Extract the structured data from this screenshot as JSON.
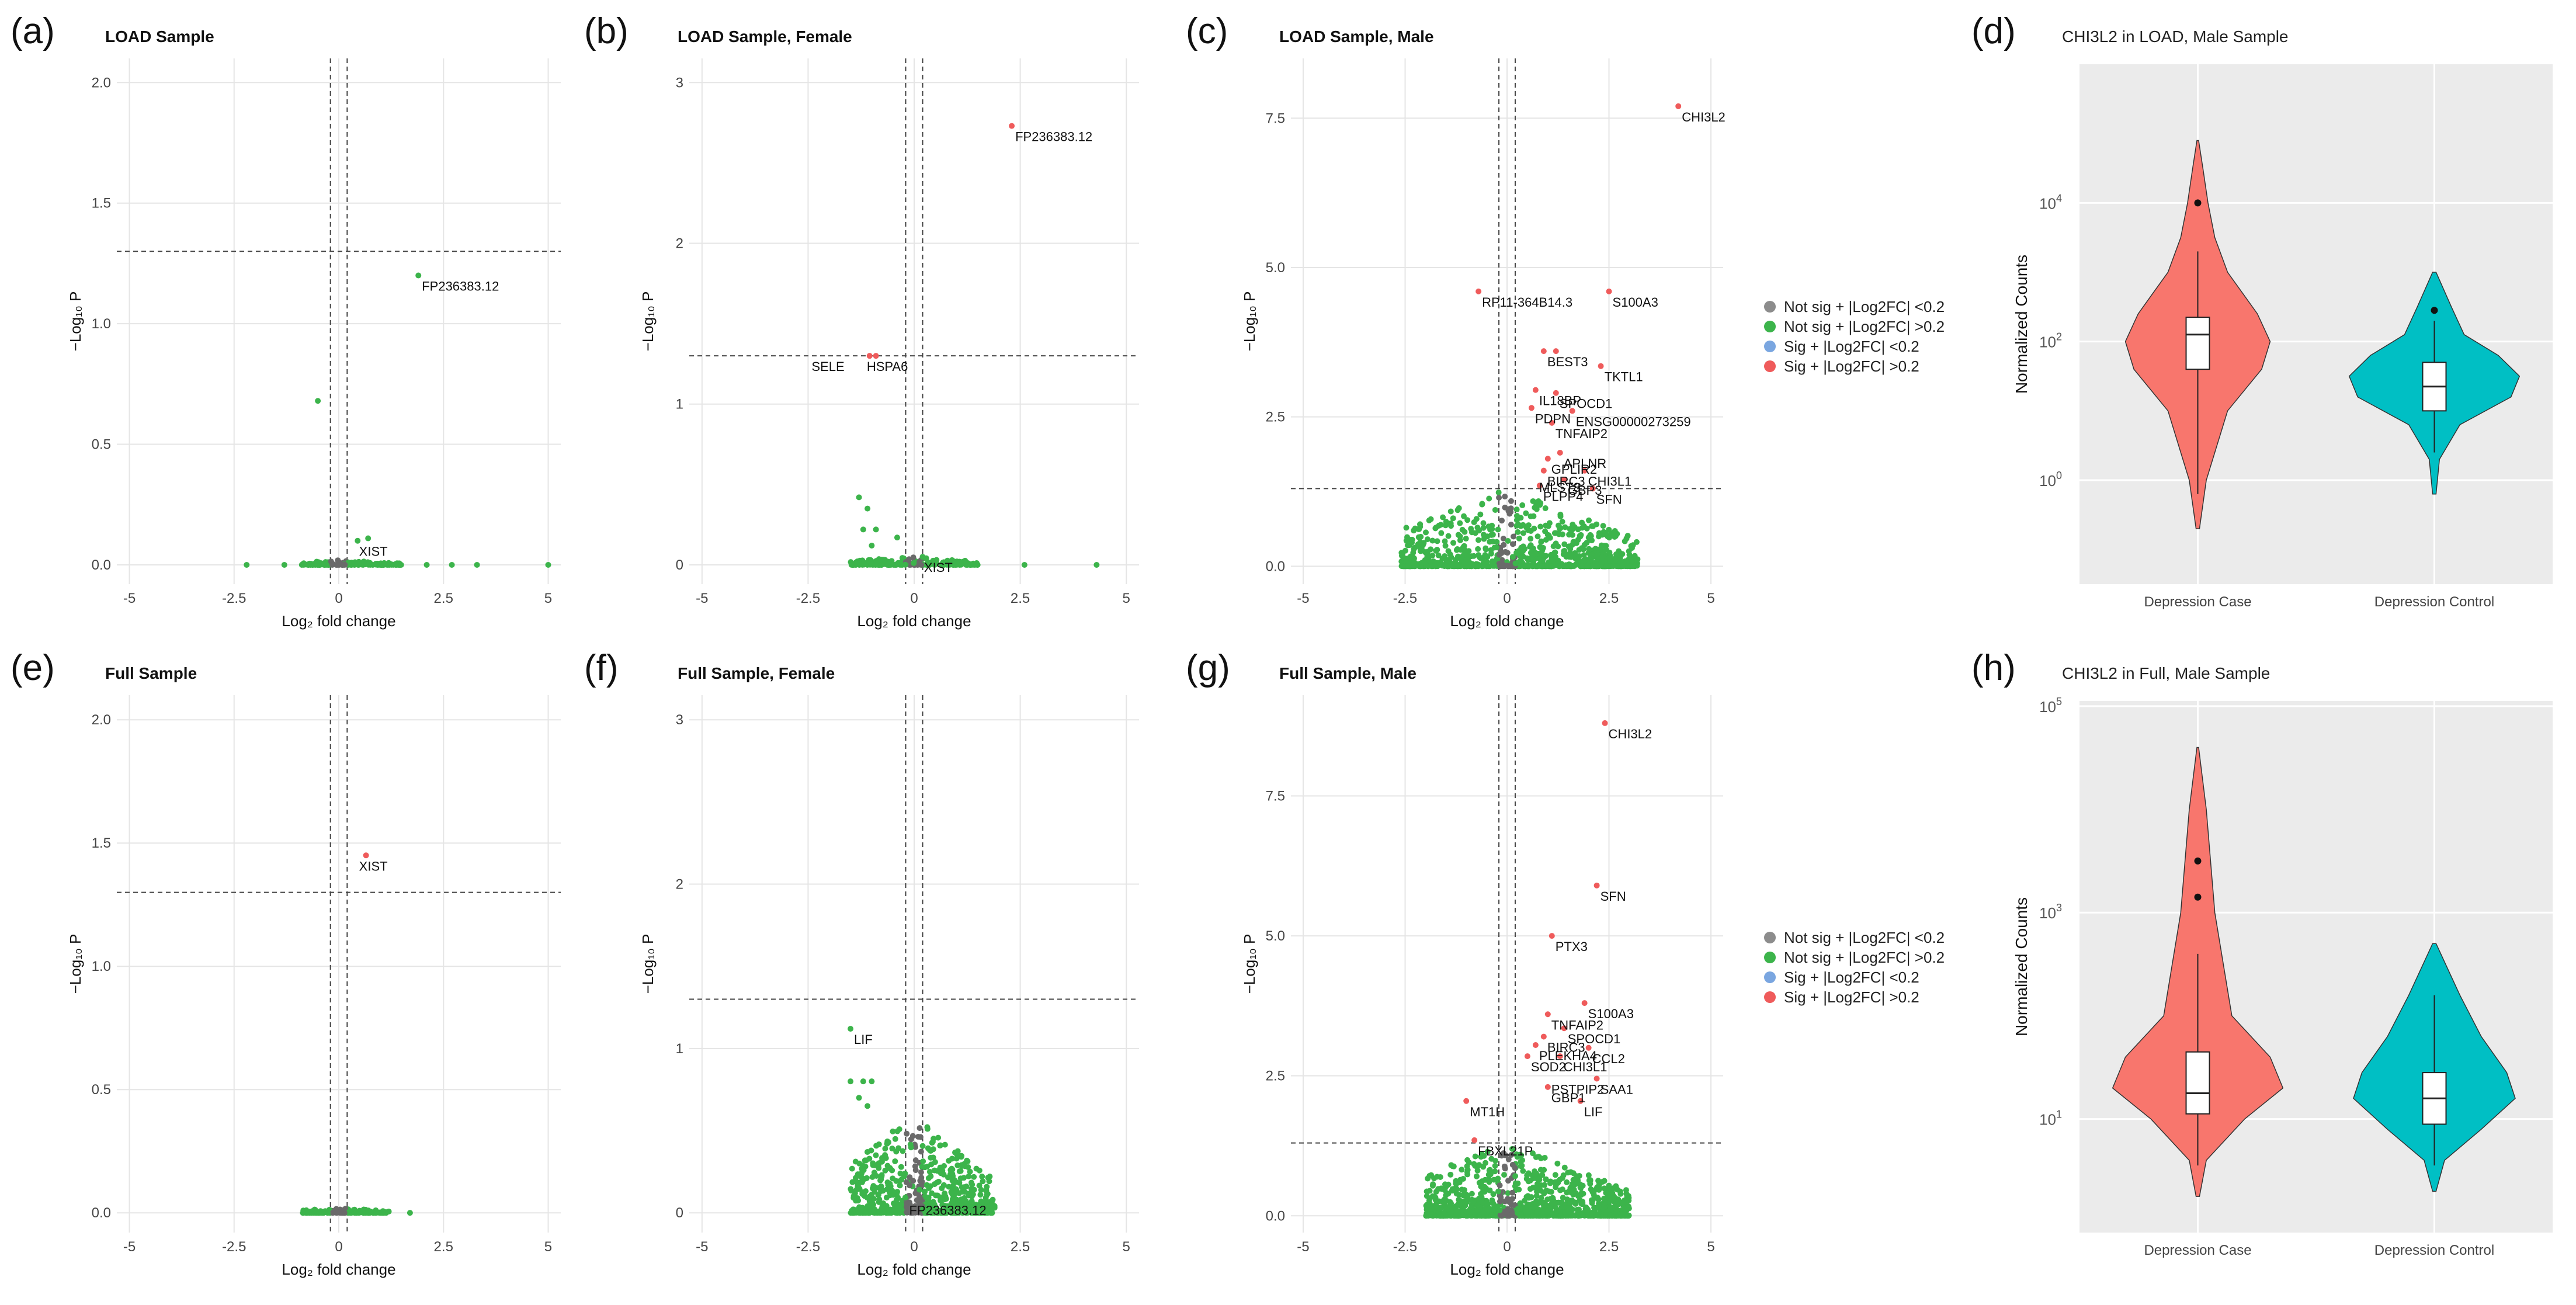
{
  "panel_letters": [
    "(a)",
    "(b)",
    "(c)",
    "(d)",
    "(e)",
    "(f)",
    "(g)",
    "(h)"
  ],
  "legend": {
    "items": [
      {
        "label": "Not sig + |Log2FC| <0.2",
        "color": "#8c8c8c"
      },
      {
        "label": "Not sig + |Log2FC| >0.2",
        "color": "#3cb44b"
      },
      {
        "label": "Sig + |Log2FC| <0.2",
        "color": "#7aa6e0"
      },
      {
        "label": "Sig + |Log2FC| >0.2",
        "color": "#ef5b5b"
      }
    ]
  },
  "chart_data": [
    {
      "type": "scatter",
      "title": "LOAD Sample",
      "xlabel": "Log₂ fold change",
      "ylabel": "−Log₁₀ P",
      "xlim": [
        -5.3,
        5.3
      ],
      "ylim": [
        -0.08,
        2.1
      ],
      "xticks": [
        "-5",
        "-2.5",
        "0",
        "2.5",
        "5"
      ],
      "xtick_values": [
        -5,
        -2.5,
        0,
        2.5,
        5
      ],
      "yticks": [
        "0.0",
        "0.5",
        "1.0",
        "1.5",
        "2.0"
      ],
      "ytick_values": [
        0,
        0.5,
        1,
        1.5,
        2
      ],
      "hline": 1.3,
      "vlines": [
        -0.2,
        0.2
      ],
      "cloud": {
        "xmin": -0.9,
        "xmax": 1.5,
        "ymax": 0.02,
        "n": 160
      },
      "points": [
        {
          "x": -2.2,
          "y": 0
        },
        {
          "x": -0.5,
          "y": 0.68
        },
        {
          "x": 0.45,
          "y": 0.1
        },
        {
          "x": 0.7,
          "y": 0.11
        },
        {
          "x": 1.9,
          "y": 1.2
        },
        {
          "x": 2.1,
          "y": 0
        },
        {
          "x": 2.7,
          "y": 0
        },
        {
          "x": 3.3,
          "y": 0
        },
        {
          "x": 5,
          "y": 0
        },
        {
          "x": 1.2,
          "y": 0
        },
        {
          "x": -1.3,
          "y": 0
        }
      ],
      "labels": [
        {
          "text": "FP236383.12",
          "x": 1.9,
          "y": 1.2
        },
        {
          "text": "XIST",
          "x": 0.4,
          "y": 0.1
        }
      ]
    },
    {
      "type": "scatter",
      "title": "LOAD Sample, Female",
      "xlabel": "Log₂ fold change",
      "ylabel": "−Log₁₀ P",
      "xlim": [
        -5.3,
        5.3
      ],
      "ylim": [
        -0.12,
        3.15
      ],
      "xticks": [
        "-5",
        "-2.5",
        "0",
        "2.5",
        "5"
      ],
      "xtick_values": [
        -5,
        -2.5,
        0,
        2.5,
        5
      ],
      "yticks": [
        "0",
        "1",
        "2",
        "3"
      ],
      "ytick_values": [
        0,
        1,
        2,
        3
      ],
      "hline": 1.3,
      "vlines": [
        -0.2,
        0.2
      ],
      "cloud": {
        "xmin": -1.5,
        "xmax": 1.5,
        "ymax": 0.06,
        "n": 200
      },
      "points": [
        {
          "x": 2.3,
          "y": 2.73,
          "sig": true
        },
        {
          "x": -1.05,
          "y": 1.3,
          "sig": true
        },
        {
          "x": -0.9,
          "y": 1.3,
          "sig": true
        },
        {
          "x": -1.3,
          "y": 0.42
        },
        {
          "x": -1.1,
          "y": 0.35
        },
        {
          "x": -1.2,
          "y": 0.22
        },
        {
          "x": -0.9,
          "y": 0.22
        },
        {
          "x": -1.0,
          "y": 0.12
        },
        {
          "x": -0.4,
          "y": 0.17
        },
        {
          "x": 0.2,
          "y": 0.05
        },
        {
          "x": 2.6,
          "y": 0
        },
        {
          "x": 4.3,
          "y": 0
        }
      ],
      "labels": [
        {
          "text": "FP236383.12",
          "x": 2.3,
          "y": 2.73
        },
        {
          "text": "SELE",
          "x": -2.5,
          "y": 1.3
        },
        {
          "text": "HSPA6",
          "x": -1.2,
          "y": 1.3
        },
        {
          "text": "XIST",
          "x": 0.15,
          "y": 0.05
        }
      ]
    },
    {
      "type": "scatter",
      "title": "LOAD Sample, Male",
      "xlabel": "Log₂ fold change",
      "ylabel": "−Log₁₀ P",
      "xlim": [
        -5.3,
        5.3
      ],
      "ylim": [
        -0.3,
        8.5
      ],
      "xticks": [
        "-5",
        "-2.5",
        "0",
        "2.5",
        "5"
      ],
      "xtick_values": [
        -5,
        -2.5,
        0,
        2.5,
        5
      ],
      "yticks": [
        "0.0",
        "2.5",
        "5.0",
        "7.5"
      ],
      "ytick_values": [
        0,
        2.5,
        5,
        7.5
      ],
      "hline": 1.3,
      "vlines": [
        -0.2,
        0.2
      ],
      "cloud": {
        "xmin": -2.6,
        "xmax": 3.2,
        "ymax": 1.3,
        "n": 900
      },
      "points": [
        {
          "x": 4.2,
          "y": 7.7,
          "sig": true
        },
        {
          "x": -0.7,
          "y": 4.6,
          "sig": true
        },
        {
          "x": 2.5,
          "y": 4.6,
          "sig": true
        },
        {
          "x": 0.9,
          "y": 3.6,
          "sig": true
        },
        {
          "x": 1.2,
          "y": 3.6,
          "sig": true
        },
        {
          "x": 2.3,
          "y": 3.35,
          "sig": true
        },
        {
          "x": 0.7,
          "y": 2.95,
          "sig": true
        },
        {
          "x": 1.2,
          "y": 2.9,
          "sig": true
        },
        {
          "x": 0.6,
          "y": 2.65,
          "sig": true
        },
        {
          "x": 1.6,
          "y": 2.6,
          "sig": true
        },
        {
          "x": 1.1,
          "y": 2.4,
          "sig": true
        },
        {
          "x": 1.3,
          "y": 1.9,
          "sig": true
        },
        {
          "x": 1.0,
          "y": 1.8,
          "sig": true
        },
        {
          "x": 0.9,
          "y": 1.6,
          "sig": true
        },
        {
          "x": 1.9,
          "y": 1.6,
          "sig": true
        },
        {
          "x": 1.4,
          "y": 1.45,
          "sig": true
        },
        {
          "x": 0.8,
          "y": 1.35,
          "sig": true
        },
        {
          "x": 2.1,
          "y": 1.3,
          "sig": true
        }
      ],
      "labels": [
        {
          "text": "CHI3L2",
          "x": 4.2,
          "y": 7.7
        },
        {
          "text": "RP11-364B14.3",
          "x": -0.7,
          "y": 4.6
        },
        {
          "text": "S100A3",
          "x": 2.5,
          "y": 4.6
        },
        {
          "text": "BEST3",
          "x": 0.9,
          "y": 3.6
        },
        {
          "text": "TKTL1",
          "x": 2.3,
          "y": 3.35
        },
        {
          "text": "IL18BP",
          "x": 0.7,
          "y": 2.95
        },
        {
          "text": "SPOCD1",
          "x": 1.2,
          "y": 2.9
        },
        {
          "text": "PDPN",
          "x": 0.6,
          "y": 2.65
        },
        {
          "text": "ENSG00000273259",
          "x": 1.6,
          "y": 2.6
        },
        {
          "text": "TNFAIP2",
          "x": 1.1,
          "y": 2.4
        },
        {
          "text": "APLNR",
          "x": 1.3,
          "y": 1.9
        },
        {
          "text": "GPLIR2",
          "x": 1.0,
          "y": 1.8
        },
        {
          "text": "BIRC3",
          "x": 0.9,
          "y": 1.6
        },
        {
          "text": "CHI3L1",
          "x": 1.9,
          "y": 1.6
        },
        {
          "text": "MLST8",
          "x": 0.7,
          "y": 1.5
        },
        {
          "text": "GBP3",
          "x": 1.4,
          "y": 1.45
        },
        {
          "text": "PLPP4",
          "x": 0.8,
          "y": 1.35
        },
        {
          "text": "SFN",
          "x": 2.1,
          "y": 1.3
        }
      ]
    },
    {
      "type": "violin",
      "title": "CHI3L2 in LOAD, Male Sample",
      "xlabel": "",
      "ylabel": "Normalized Counts",
      "yscale": "log",
      "ylim_log10": [
        -1.5,
        6.0
      ],
      "ytick_log10": [
        0,
        2,
        4
      ],
      "categories": [
        "Depression Case",
        "Depression Control"
      ],
      "colors": [
        "#f8766d",
        "#00bfc4"
      ],
      "groups": [
        {
          "name": "Depression Case",
          "min_log10": -0.7,
          "q1_log10": 1.6,
          "median_log10": 2.1,
          "q3_log10": 2.35,
          "whisker_low_log10": -0.2,
          "whisker_high_log10": 3.3,
          "max_log10": 4.9,
          "outliers_log10": [
            4.0
          ],
          "widths": [
            [
              -0.7,
              0.02
            ],
            [
              0,
              0.1
            ],
            [
              1,
              0.35
            ],
            [
              1.6,
              0.75
            ],
            [
              2.0,
              0.85
            ],
            [
              2.4,
              0.7
            ],
            [
              3.0,
              0.35
            ],
            [
              3.5,
              0.2
            ],
            [
              4.0,
              0.12
            ],
            [
              4.5,
              0.06
            ],
            [
              4.9,
              0.01
            ]
          ]
        },
        {
          "name": "Depression Control",
          "min_log10": -0.2,
          "q1_log10": 1.0,
          "median_log10": 1.35,
          "q3_log10": 1.7,
          "whisker_low_log10": 0.4,
          "whisker_high_log10": 2.3,
          "max_log10": 3.0,
          "outliers_log10": [
            2.45
          ],
          "widths": [
            [
              -0.2,
              0.02
            ],
            [
              0.3,
              0.06
            ],
            [
              0.8,
              0.3
            ],
            [
              1.2,
              0.9
            ],
            [
              1.5,
              1.0
            ],
            [
              1.8,
              0.75
            ],
            [
              2.1,
              0.35
            ],
            [
              2.5,
              0.2
            ],
            [
              3.0,
              0.02
            ]
          ]
        }
      ]
    },
    {
      "type": "scatter",
      "title": "Full Sample",
      "xlabel": "Log₂ fold change",
      "ylabel": "−Log₁₀ P",
      "xlim": [
        -5.3,
        5.3
      ],
      "ylim": [
        -0.08,
        2.1
      ],
      "xticks": [
        "-5",
        "-2.5",
        "0",
        "2.5",
        "5"
      ],
      "xtick_values": [
        -5,
        -2.5,
        0,
        2.5,
        5
      ],
      "yticks": [
        "0.0",
        "0.5",
        "1.0",
        "1.5",
        "2.0"
      ],
      "ytick_values": [
        0,
        0.5,
        1,
        1.5,
        2
      ],
      "hline": 1.3,
      "vlines": [
        -0.2,
        0.2
      ],
      "cloud": {
        "xmin": -0.9,
        "xmax": 1.2,
        "ymax": 0.02,
        "n": 160
      },
      "points": [
        {
          "x": 0.65,
          "y": 1.45,
          "sig": true
        },
        {
          "x": 1.7,
          "y": 0
        }
      ],
      "labels": [
        {
          "text": "XIST",
          "x": 0.4,
          "y": 1.45
        }
      ]
    },
    {
      "type": "scatter",
      "title": "Full Sample, Female",
      "xlabel": "Log₂ fold change",
      "ylabel": "−Log₁₀ P",
      "xlim": [
        -5.3,
        5.3
      ],
      "ylim": [
        -0.12,
        3.15
      ],
      "xticks": [
        "-5",
        "-2.5",
        "0",
        "2.5",
        "5"
      ],
      "xtick_values": [
        -5,
        -2.5,
        0,
        2.5,
        5
      ],
      "yticks": [
        "0",
        "1",
        "2",
        "3"
      ],
      "ytick_values": [
        0,
        1,
        2,
        3
      ],
      "hline": 1.3,
      "vlines": [
        -0.2,
        0.2
      ],
      "cloud": {
        "xmin": -1.5,
        "xmax": 1.9,
        "ymax": 0.6,
        "n": 700
      },
      "points": [
        {
          "x": -1.5,
          "y": 1.12
        },
        {
          "x": -1.5,
          "y": 0.8
        },
        {
          "x": -1.2,
          "y": 0.8
        },
        {
          "x": -1.0,
          "y": 0.8
        },
        {
          "x": -1.3,
          "y": 0.7
        },
        {
          "x": -1.1,
          "y": 0.65
        }
      ],
      "labels": [
        {
          "text": "LIF",
          "x": -1.5,
          "y": 1.12
        },
        {
          "text": "FP236383.12",
          "x": -0.2,
          "y": 0.08
        }
      ]
    },
    {
      "type": "scatter",
      "title": "Full Sample, Male",
      "xlabel": "Log₂ fold change",
      "ylabel": "−Log₁₀ P",
      "xlim": [
        -5.3,
        5.3
      ],
      "ylim": [
        -0.3,
        9.3
      ],
      "xticks": [
        "-5",
        "-2.5",
        "0",
        "2.5",
        "5"
      ],
      "xtick_values": [
        -5,
        -2.5,
        0,
        2.5,
        5
      ],
      "yticks": [
        "0.0",
        "2.5",
        "5.0",
        "7.5"
      ],
      "ytick_values": [
        0,
        2.5,
        5,
        7.5
      ],
      "hline": 1.3,
      "vlines": [
        -0.2,
        0.2
      ],
      "cloud": {
        "xmin": -2.0,
        "xmax": 3.0,
        "ymax": 1.3,
        "n": 1000
      },
      "points": [
        {
          "x": 2.4,
          "y": 8.8,
          "sig": true
        },
        {
          "x": 2.2,
          "y": 5.9,
          "sig": true
        },
        {
          "x": 1.1,
          "y": 5.0,
          "sig": true
        },
        {
          "x": 1.9,
          "y": 3.8,
          "sig": true
        },
        {
          "x": 1.0,
          "y": 3.6,
          "sig": true
        },
        {
          "x": 1.4,
          "y": 3.35,
          "sig": true
        },
        {
          "x": 0.9,
          "y": 3.2,
          "sig": true
        },
        {
          "x": 2.0,
          "y": 3.0,
          "sig": true
        },
        {
          "x": 0.7,
          "y": 3.05,
          "sig": true
        },
        {
          "x": 0.5,
          "y": 2.85,
          "sig": true
        },
        {
          "x": 1.3,
          "y": 2.85,
          "sig": true
        },
        {
          "x": 2.2,
          "y": 2.45,
          "sig": true
        },
        {
          "x": 1.0,
          "y": 2.3,
          "sig": true
        },
        {
          "x": 1.8,
          "y": 2.05,
          "sig": true
        },
        {
          "x": -1.0,
          "y": 2.05,
          "sig": true
        },
        {
          "x": -0.8,
          "y": 1.35,
          "sig": true
        }
      ],
      "labels": [
        {
          "text": "CHI3L2",
          "x": 2.4,
          "y": 8.8
        },
        {
          "text": "SFN",
          "x": 2.2,
          "y": 5.9
        },
        {
          "text": "PTX3",
          "x": 1.1,
          "y": 5.0
        },
        {
          "text": "S100A3",
          "x": 1.9,
          "y": 3.8
        },
        {
          "text": "TNFAIP2",
          "x": 1.0,
          "y": 3.6
        },
        {
          "text": "SPOCD1",
          "x": 1.4,
          "y": 3.35
        },
        {
          "text": "BIRC3",
          "x": 0.9,
          "y": 3.2
        },
        {
          "text": "PLEKHA4",
          "x": 0.7,
          "y": 3.05
        },
        {
          "text": "CCL2",
          "x": 2.0,
          "y": 3.0
        },
        {
          "text": "SOD2",
          "x": 0.5,
          "y": 2.85
        },
        {
          "text": "CHI3L1",
          "x": 1.3,
          "y": 2.85
        },
        {
          "text": "PSTPIP2",
          "x": 1.0,
          "y": 2.45
        },
        {
          "text": "SAA1",
          "x": 2.2,
          "y": 2.45
        },
        {
          "text": "GBP1",
          "x": 1.0,
          "y": 2.3
        },
        {
          "text": "LIF",
          "x": 1.8,
          "y": 2.05
        },
        {
          "text": "MT1H",
          "x": -1.0,
          "y": 2.05
        },
        {
          "text": "FBXL21P",
          "x": -0.8,
          "y": 1.35
        }
      ]
    },
    {
      "type": "violin",
      "title": "CHI3L2 in Full, Male Sample",
      "xlabel": "",
      "ylabel": "Normalized Counts",
      "yscale": "log",
      "ylim_log10": [
        -0.1,
        5.05
      ],
      "ytick_log10": [
        1,
        3,
        5
      ],
      "categories": [
        "Depression Case",
        "Depression Control"
      ],
      "colors": [
        "#f8766d",
        "#00bfc4"
      ],
      "groups": [
        {
          "name": "Depression Case",
          "min_log10": 0.25,
          "q1_log10": 1.05,
          "median_log10": 1.25,
          "q3_log10": 1.65,
          "whisker_low_log10": 0.55,
          "whisker_high_log10": 2.6,
          "max_log10": 4.6,
          "outliers_log10": [
            3.5,
            3.15
          ],
          "widths": [
            [
              0.25,
              0.02
            ],
            [
              0.6,
              0.1
            ],
            [
              1.0,
              0.55
            ],
            [
              1.3,
              1.0
            ],
            [
              1.6,
              0.85
            ],
            [
              2.0,
              0.4
            ],
            [
              2.6,
              0.28
            ],
            [
              3.0,
              0.2
            ],
            [
              3.5,
              0.15
            ],
            [
              4.0,
              0.1
            ],
            [
              4.6,
              0.01
            ]
          ]
        },
        {
          "name": "Depression Control",
          "min_log10": 0.3,
          "q1_log10": 0.95,
          "median_log10": 1.2,
          "q3_log10": 1.45,
          "whisker_low_log10": 0.55,
          "whisker_high_log10": 2.2,
          "max_log10": 2.7,
          "outliers_log10": [],
          "widths": [
            [
              0.3,
              0.02
            ],
            [
              0.6,
              0.12
            ],
            [
              0.9,
              0.55
            ],
            [
              1.2,
              0.95
            ],
            [
              1.45,
              0.85
            ],
            [
              1.8,
              0.55
            ],
            [
              2.2,
              0.3
            ],
            [
              2.7,
              0.02
            ]
          ]
        }
      ]
    }
  ]
}
